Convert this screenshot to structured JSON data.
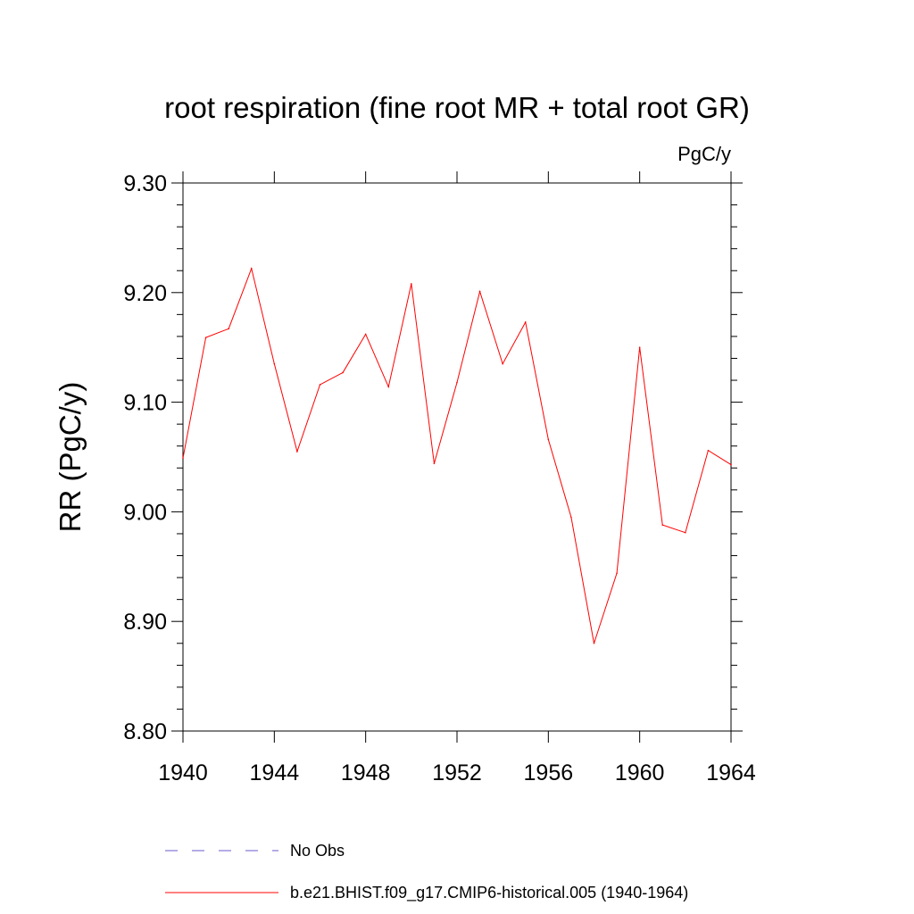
{
  "chart_data": {
    "type": "line",
    "title": "root respiration (fine root MR + total root GR)",
    "units_label": "PgC/y",
    "xlabel": "",
    "ylabel": "RR  (PgC/y)",
    "xlim": [
      1940,
      1964
    ],
    "ylim": [
      8.8,
      9.3
    ],
    "x_ticks": [
      1940,
      1944,
      1948,
      1952,
      1956,
      1960,
      1964
    ],
    "x_tick_labels": [
      "1940",
      "1944",
      "1948",
      "1952",
      "1956",
      "1960",
      "1964"
    ],
    "y_ticks": [
      8.8,
      8.9,
      9.0,
      9.1,
      9.2,
      9.3
    ],
    "y_tick_labels": [
      "8.80",
      "8.90",
      "9.00",
      "9.10",
      "9.20",
      "9.30"
    ],
    "grid": false,
    "legend_position": "bottom",
    "series": [
      {
        "name": "b.e21.BHIST.f09_g17.CMIP6-historical.005 (1940-1964)",
        "color": "#ff0000",
        "style": "solid",
        "x": [
          1940,
          1941,
          1942,
          1943,
          1944,
          1945,
          1946,
          1947,
          1948,
          1949,
          1950,
          1951,
          1952,
          1953,
          1954,
          1955,
          1956,
          1957,
          1958,
          1959,
          1960,
          1961,
          1962,
          1963,
          1964
        ],
        "values": [
          9.049,
          9.159,
          9.167,
          9.222,
          9.135,
          9.055,
          9.116,
          9.127,
          9.162,
          9.114,
          9.208,
          9.044,
          9.118,
          9.201,
          9.135,
          9.173,
          9.066,
          8.995,
          8.88,
          8.944,
          9.15,
          8.988,
          8.981,
          9.056,
          9.043
        ]
      }
    ],
    "legend": [
      {
        "label": "No Obs",
        "color": "#6a5acd",
        "style": "dashed"
      },
      {
        "label": "b.e21.BHIST.f09_g17.CMIP6-historical.005 (1940-1964)",
        "color": "#ff0000",
        "style": "solid"
      }
    ]
  }
}
